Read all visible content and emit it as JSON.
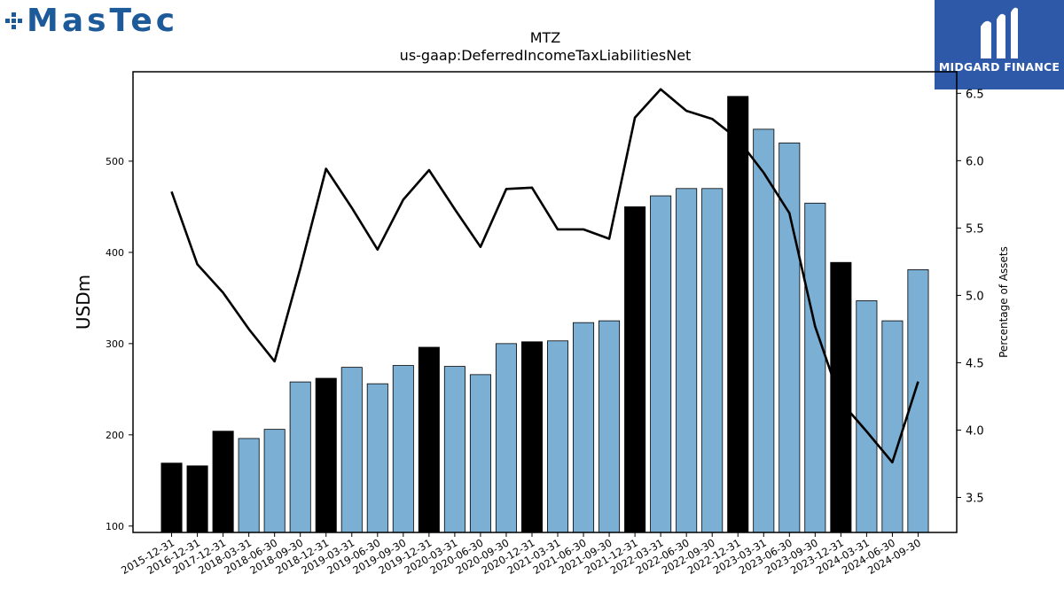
{
  "branding": {
    "left_logo_text": "MasTec",
    "right_logo_text": "MIDGARD FINANCE",
    "left_logo_color": "#1c5a9a",
    "right_logo_bg": "#2e59a8"
  },
  "chart_data": {
    "type": "bar",
    "title": "MTZ",
    "subtitle": "us-gaap:DeferredIncomeTaxLiabilitiesNet",
    "ylabel": "USDm",
    "y2label": "Percentage of Assets",
    "ylim": [
      93,
      598
    ],
    "y2lim": [
      3.24,
      6.66
    ],
    "yticks": [
      100,
      200,
      300,
      400,
      500
    ],
    "y2ticks": [
      3.5,
      4.0,
      4.5,
      5.0,
      5.5,
      6.0,
      6.5
    ],
    "grid": false,
    "colors": {
      "annual": "#000000",
      "quarterly": "#7bafd4",
      "line": "#000000"
    },
    "categories": [
      "2015-12-31",
      "2016-12-31",
      "2017-12-31",
      "2018-03-31",
      "2018-06-30",
      "2018-09-30",
      "2018-12-31",
      "2019-03-31",
      "2019-06-30",
      "2019-09-30",
      "2019-12-31",
      "2020-03-31",
      "2020-06-30",
      "2020-09-30",
      "2020-12-31",
      "2021-03-31",
      "2021-06-30",
      "2021-09-30",
      "2021-12-31",
      "2022-03-31",
      "2022-06-30",
      "2022-09-30",
      "2022-12-31",
      "2023-03-31",
      "2023-06-30",
      "2023-09-30",
      "2023-12-31",
      "2024-03-31",
      "2024-06-30",
      "2024-09-30"
    ],
    "series": [
      {
        "type": "bar",
        "values": [
          169,
          166,
          204,
          196,
          206,
          258,
          262,
          274,
          256,
          276,
          296,
          275,
          266,
          300,
          302,
          303,
          323,
          325,
          450,
          462,
          470,
          470,
          571,
          535,
          520,
          454,
          389,
          347,
          325,
          381
        ],
        "annual": [
          true,
          true,
          true,
          false,
          false,
          false,
          true,
          false,
          false,
          false,
          true,
          false,
          false,
          false,
          true,
          false,
          false,
          false,
          true,
          false,
          false,
          false,
          true,
          false,
          false,
          false,
          true,
          false,
          false,
          false
        ]
      },
      {
        "type": "line",
        "axis": "right",
        "values": [
          5.77,
          5.23,
          5.02,
          4.75,
          4.51,
          5.2,
          5.94,
          5.65,
          5.34,
          5.71,
          5.93,
          5.64,
          5.36,
          5.79,
          5.8,
          5.49,
          5.49,
          5.42,
          6.32,
          6.53,
          6.37,
          6.31,
          6.16,
          5.91,
          5.61,
          4.77,
          4.21,
          3.99,
          3.76,
          4.36
        ]
      }
    ]
  }
}
